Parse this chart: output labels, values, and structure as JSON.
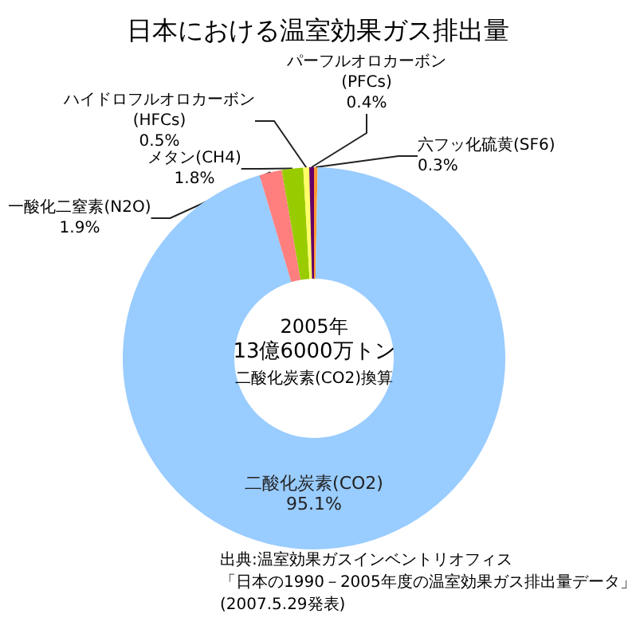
{
  "chart_data": {
    "type": "donut",
    "title": "日本における温室効果ガス排出量",
    "categories": [
      "六フッ化硫黄(SF6)",
      "二酸化炭素(CO2)",
      "一酸化二窒素(N2O)",
      "メタン(CH4)",
      "ハイドロフルオロカーボン\n(HFCs)",
      "パーフルオロカーボン\n(PFCs)"
    ],
    "values": [
      0.3,
      95.1,
      1.9,
      1.8,
      0.5,
      0.4
    ],
    "value_labels": [
      "0.3%",
      "95.1%",
      "1.9%",
      "1.8%",
      "0.5%",
      "0.4%"
    ],
    "colors": [
      "#ff9933",
      "#99ccff",
      "#ff7f7f",
      "#99cc00",
      "#ffff66",
      "#660066"
    ],
    "annotations": [
      "2005年",
      "13億6000万トン",
      "二酸化炭素(CO2)換算",
      "出典:温室効果ガスインベントリオフィス",
      "「日本の1990－2005年度の温室効果ガス排出量データ」",
      "(2007.5.29発表)"
    ],
    "legend": false
  }
}
